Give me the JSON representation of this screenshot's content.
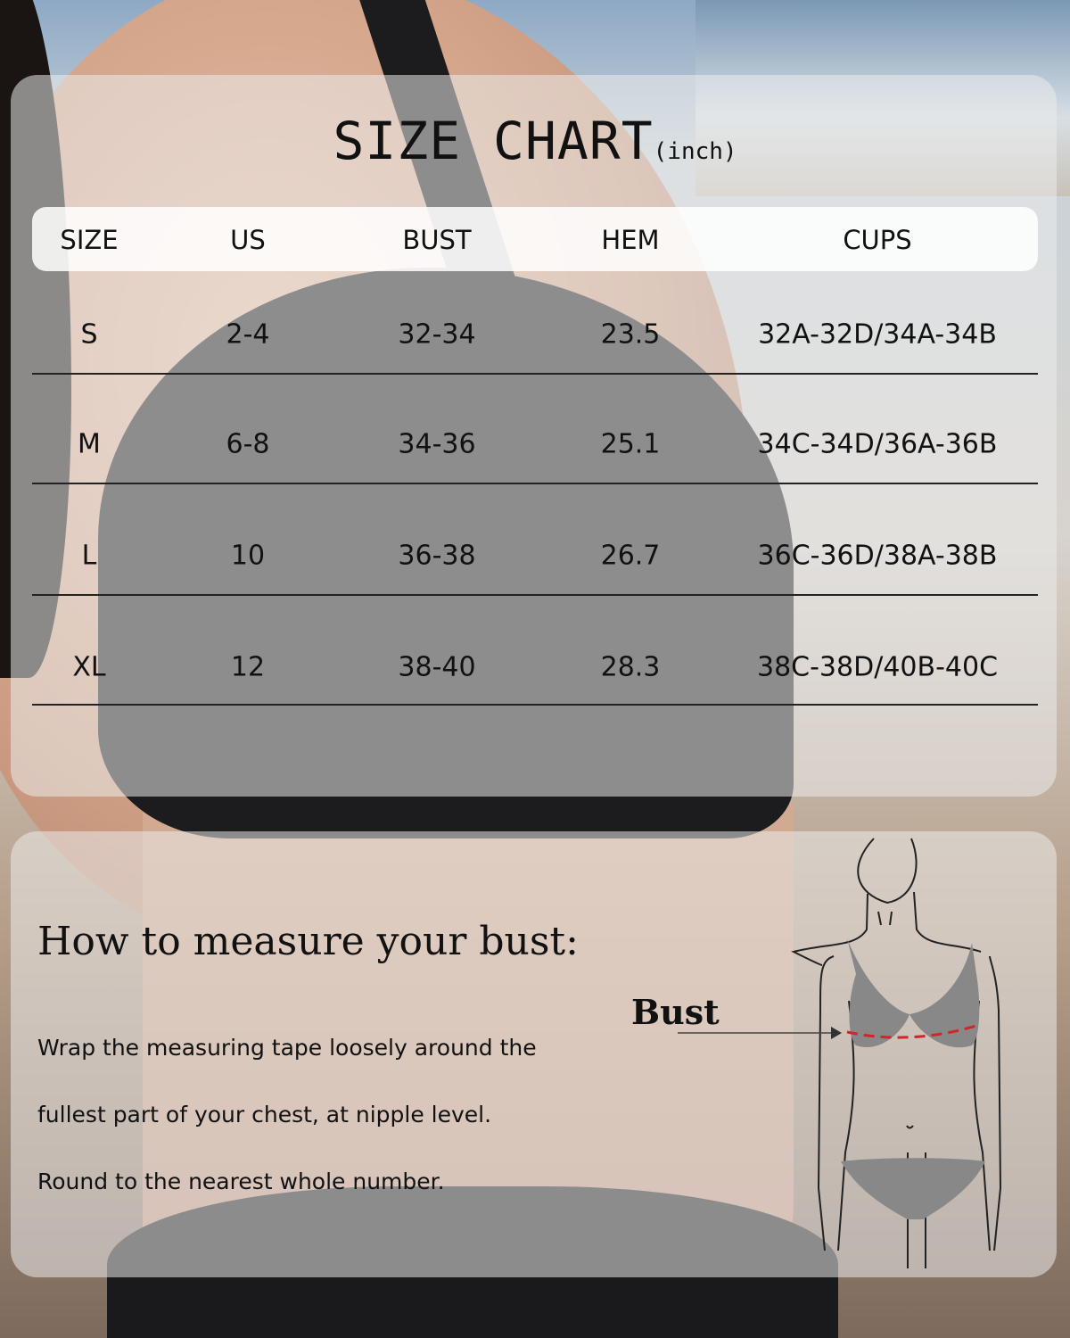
{
  "title": {
    "main": "SIZE CHART",
    "unit": "(inch)"
  },
  "table": {
    "headers": [
      "SIZE",
      "US",
      "BUST",
      "HEM",
      "CUPS"
    ],
    "rows": [
      [
        "S",
        "2-4",
        "32-34",
        "23.5",
        "32A-32D/34A-34B"
      ],
      [
        "M",
        "6-8",
        "34-36",
        "25.1",
        "34C-34D/36A-36B"
      ],
      [
        "L",
        "10",
        "36-38",
        "26.7",
        "36C-36D/38A-38B"
      ],
      [
        "XL",
        "12",
        "38-40",
        "28.3",
        "38C-38D/40B-40C"
      ]
    ]
  },
  "measure": {
    "heading": "How to measure your bust:",
    "lines": [
      "Wrap the measuring tape loosely around the",
      "fullest part of your chest, at nipple level.",
      "Round to the nearest whole number."
    ],
    "figure_label": "Bust"
  },
  "colors": {
    "measure_line": "#d0262b"
  }
}
